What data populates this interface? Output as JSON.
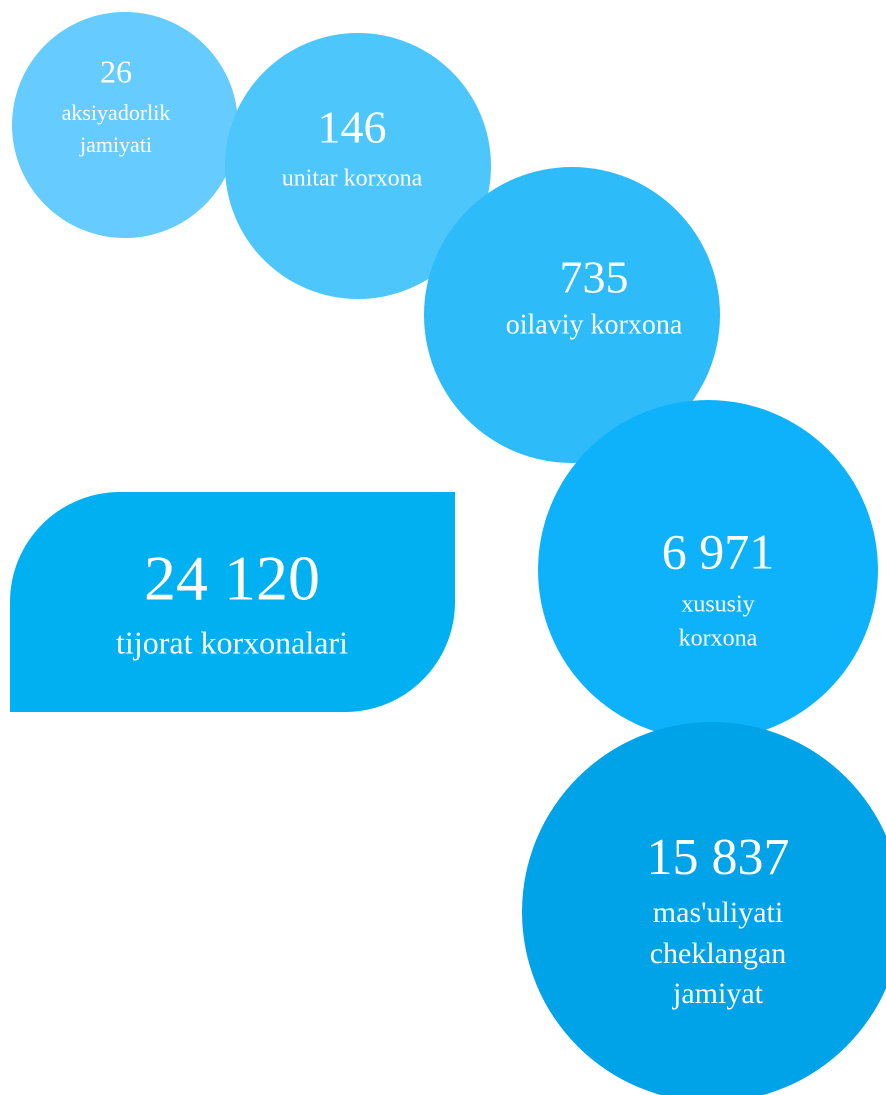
{
  "total": {
    "value": "24 120",
    "label": [
      "tijorat korxonalari"
    ]
  },
  "nodes": [
    {
      "value": "26",
      "label": [
        "aksiyadorlik",
        "jamiyati"
      ]
    },
    {
      "value": "146",
      "label": [
        "unitar korxona"
      ]
    },
    {
      "value": "735",
      "label": [
        "oilaviy korxona"
      ]
    },
    {
      "value": "6 971",
      "label": [
        "xususiy",
        "korxona"
      ]
    },
    {
      "value": "15 837",
      "label": [
        "mas'uliyati",
        "cheklangan",
        "jamiyat"
      ]
    }
  ]
}
